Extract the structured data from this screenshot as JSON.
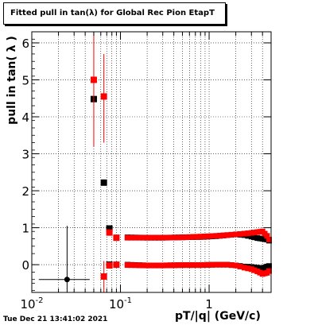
{
  "chart_data": {
    "type": "scatter",
    "title": "Fitted pull in tan(λ) for Global Rec Pion EtapT",
    "xlabel": "pT/|q| (GeV/c)",
    "ylabel": "pull in tan( λ )",
    "timestamp": "Tue Dec 21 13:41:02 2021",
    "xscale": "log",
    "xlim": [
      0.01,
      5.0
    ],
    "ylim": [
      -0.75,
      6.3
    ],
    "grid": true,
    "x_ticks": [
      {
        "value": 0.01,
        "base": "10",
        "exp": "-2"
      },
      {
        "value": 0.1,
        "base": "10",
        "exp": "-1"
      },
      {
        "value": 1,
        "base": "1",
        "exp": ""
      }
    ],
    "y_ticks": [
      "0",
      "1",
      "2",
      "3",
      "4",
      "5",
      "6"
    ],
    "series": [
      {
        "color": "#000000",
        "points": [
          {
            "x": 0.025,
            "y": -0.4,
            "ylo": -1.1,
            "yhi": 1.05,
            "xlo": 0.012,
            "xhi": 0.045
          },
          {
            "x": 0.05,
            "y": 4.48
          },
          {
            "x": 0.065,
            "y": 2.22
          },
          {
            "x": 0.075,
            "y": 0.98
          },
          {
            "x": 0.075,
            "y": 0.0
          }
        ]
      },
      {
        "color": "#ff0000",
        "points": [
          {
            "x": 0.05,
            "y": 5.0,
            "ylo": 3.2,
            "yhi": 6.3
          },
          {
            "x": 0.065,
            "y": 4.55,
            "ylo": 3.3,
            "yhi": 5.7
          },
          {
            "x": 0.065,
            "y": -0.32,
            "ylo": -0.75,
            "yhi": 0.1
          },
          {
            "x": 0.075,
            "y": 0.87
          },
          {
            "x": 0.075,
            "y": -0.02
          },
          {
            "x": 0.09,
            "y": 0.73
          },
          {
            "x": 0.09,
            "y": 0.0
          }
        ]
      }
    ],
    "bands": [
      {
        "color": "#000000",
        "x": [
          0.12,
          0.2,
          0.3,
          0.5,
          0.8,
          1.2,
          1.6,
          2.0,
          2.5,
          3.0,
          3.5,
          4.0,
          4.5,
          5.0
        ],
        "y": [
          0.74,
          0.73,
          0.73,
          0.74,
          0.75,
          0.77,
          0.8,
          0.82,
          0.8,
          0.76,
          0.72,
          0.7,
          0.68,
          0.62
        ]
      },
      {
        "color": "#ff0000",
        "x": [
          0.12,
          0.2,
          0.3,
          0.5,
          0.8,
          1.2,
          1.6,
          2.0,
          2.5,
          3.0,
          3.5,
          4.0,
          4.5,
          5.0
        ],
        "y": [
          0.73,
          0.73,
          0.73,
          0.74,
          0.76,
          0.78,
          0.8,
          0.82,
          0.84,
          0.86,
          0.88,
          0.9,
          0.78,
          0.58
        ]
      },
      {
        "color": "#000000",
        "x": [
          0.12,
          0.2,
          0.3,
          0.5,
          0.8,
          1.2,
          1.6,
          2.0,
          2.5,
          3.0,
          3.5,
          4.0,
          4.5,
          5.0
        ],
        "y": [
          0.0,
          -0.02,
          -0.02,
          -0.01,
          -0.01,
          0.0,
          0.0,
          -0.02,
          -0.05,
          -0.06,
          -0.08,
          -0.1,
          -0.05,
          -0.02
        ]
      },
      {
        "color": "#ff0000",
        "x": [
          0.12,
          0.2,
          0.3,
          0.5,
          0.8,
          1.2,
          1.6,
          2.0,
          2.5,
          3.0,
          3.5,
          4.0,
          4.5,
          5.0
        ],
        "y": [
          -0.01,
          -0.02,
          -0.02,
          -0.01,
          -0.01,
          0.0,
          0.0,
          -0.02,
          -0.08,
          -0.12,
          -0.18,
          -0.25,
          -0.22,
          -0.12
        ]
      }
    ]
  }
}
